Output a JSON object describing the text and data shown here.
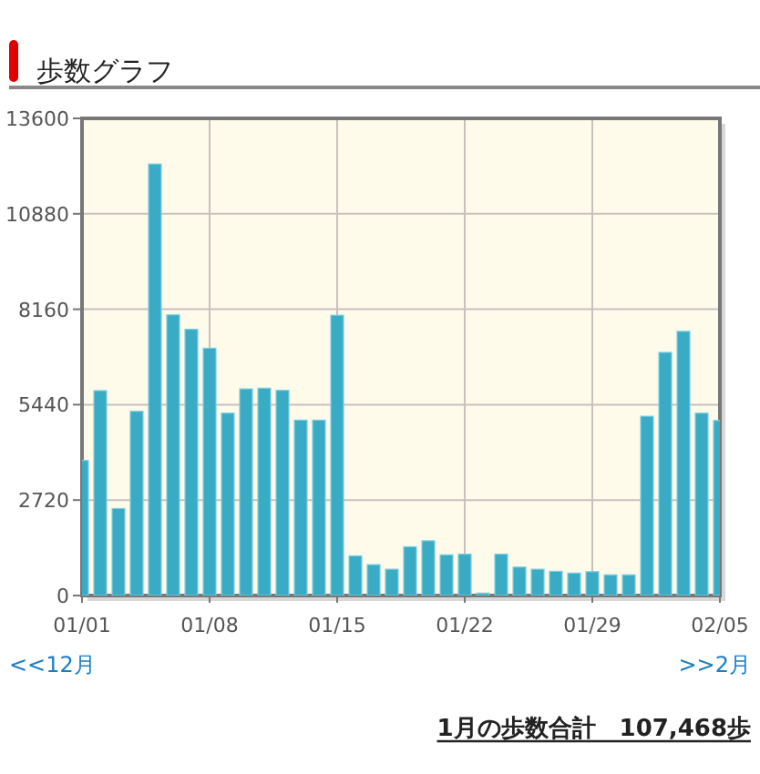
{
  "chart_data": {
    "type": "bar",
    "title": "歩数グラフ",
    "x": [
      "--01-01",
      "--01-02",
      "--01-03",
      "--01-04",
      "--01-05",
      "--01-06",
      "--01-07",
      "--01-08",
      "--01-09",
      "--01-10",
      "--01-11",
      "--01-12",
      "--01-13",
      "--01-14",
      "--01-15",
      "--01-16",
      "--01-17",
      "--01-18",
      "--01-19",
      "--01-20",
      "--01-21",
      "--01-22",
      "--01-23",
      "--01-24",
      "--01-25",
      "--01-26",
      "--01-27",
      "--01-28",
      "--01-29",
      "--01-30",
      "--01-31",
      "--02-01",
      "--02-02",
      "--02-03",
      "--02-04",
      "--02-05"
    ],
    "values": [
      3850,
      5840,
      2480,
      5250,
      12300,
      8000,
      7590,
      7050,
      5200,
      5890,
      5910,
      5850,
      5000,
      5000,
      7990,
      1130,
      880,
      750,
      1390,
      1560,
      1160,
      1180,
      70,
      1180,
      810,
      750,
      690,
      640,
      680,
      590,
      590,
      5110,
      6930,
      7530,
      5200,
      4990
    ],
    "color": "#3aabc4",
    "xlim": [
      "--01-01",
      "--02-05"
    ],
    "xticks": [
      {
        "value": "--01-01",
        "label": "01/01"
      },
      {
        "value": "--01-08",
        "label": "01/08"
      },
      {
        "value": "--01-15",
        "label": "01/15"
      },
      {
        "value": "--01-22",
        "label": "01/22"
      },
      {
        "value": "--01-29",
        "label": "01/29"
      },
      {
        "value": "--02-05",
        "label": "02/05"
      }
    ],
    "ylim": [
      0,
      13600
    ],
    "yticks": [
      0,
      2720,
      5440,
      8160,
      10880,
      13600
    ],
    "grid": true,
    "annotations": [
      "<<12月",
      ">>2月",
      "1月の歩数合計　107,468歩"
    ]
  }
}
